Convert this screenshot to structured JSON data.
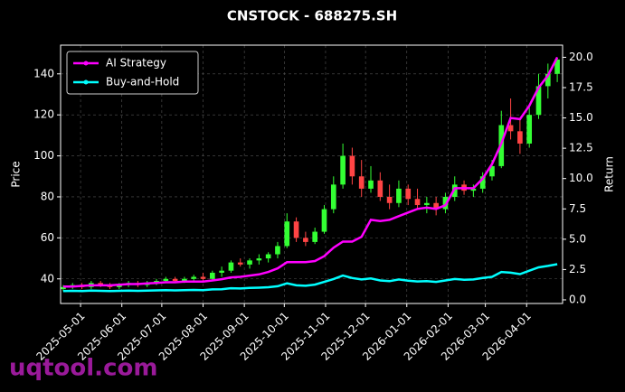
{
  "chart_data": {
    "type": "candlestick",
    "title": "CNSTOCK - 688275.SH",
    "ylabel": "Price",
    "y2label": "Return",
    "x": [
      "2025-04-18",
      "2025-04-25",
      "2025-05-02",
      "2025-05-09",
      "2025-05-16",
      "2025-05-23",
      "2025-05-30",
      "2025-06-06",
      "2025-06-13",
      "2025-06-20",
      "2025-06-27",
      "2025-07-04",
      "2025-07-11",
      "2025-07-18",
      "2025-07-25",
      "2025-08-01",
      "2025-08-08",
      "2025-08-15",
      "2025-08-22",
      "2025-08-29",
      "2025-09-05",
      "2025-09-12",
      "2025-09-19",
      "2025-09-26",
      "2025-10-03",
      "2025-10-10",
      "2025-10-17",
      "2025-10-24",
      "2025-10-31",
      "2025-11-07",
      "2025-11-14",
      "2025-11-21",
      "2025-11-28",
      "2025-12-05",
      "2025-12-12",
      "2025-12-19",
      "2025-12-26",
      "2026-01-02",
      "2026-01-09",
      "2026-01-16",
      "2026-01-23",
      "2026-01-30",
      "2026-02-06",
      "2026-02-13",
      "2026-02-20",
      "2026-02-27",
      "2026-03-06",
      "2026-03-13",
      "2026-03-20",
      "2026-03-27",
      "2026-04-03",
      "2026-04-10",
      "2026-04-17",
      "2026-04-24"
    ],
    "open": [
      35,
      36,
      37,
      36,
      38,
      37,
      36,
      37,
      38,
      37,
      38,
      39,
      40,
      39,
      40,
      41,
      40,
      43,
      44,
      48,
      47,
      49,
      50,
      52,
      56,
      68,
      60,
      58,
      63,
      74,
      86,
      100,
      90,
      84,
      88,
      80,
      77,
      84,
      79,
      76,
      77,
      74,
      80,
      86,
      83,
      84,
      90,
      95,
      115,
      112,
      106,
      120,
      134,
      140
    ],
    "high": [
      37,
      38,
      38,
      39,
      39,
      38,
      38,
      39,
      39,
      39,
      40,
      41,
      41,
      41,
      42,
      43,
      44,
      46,
      49,
      50,
      50,
      52,
      53,
      58,
      72,
      70,
      63,
      65,
      76,
      90,
      106,
      104,
      98,
      95,
      92,
      86,
      88,
      86,
      84,
      80,
      80,
      82,
      90,
      88,
      86,
      92,
      98,
      122,
      128,
      118,
      125,
      140,
      145,
      148
    ],
    "low": [
      34,
      35,
      35,
      35,
      36,
      35,
      35,
      36,
      36,
      36,
      37,
      38,
      38,
      38,
      39,
      39,
      39,
      41,
      43,
      46,
      45,
      47,
      48,
      50,
      55,
      58,
      56,
      57,
      62,
      72,
      84,
      86,
      80,
      82,
      78,
      74,
      75,
      76,
      74,
      72,
      71,
      72,
      78,
      81,
      80,
      82,
      88,
      94,
      108,
      101,
      104,
      118,
      128,
      136
    ],
    "close": [
      36,
      37,
      36,
      38,
      37,
      36,
      37,
      38,
      37,
      38,
      39,
      40,
      39,
      40,
      41,
      40,
      43,
      44,
      48,
      47,
      49,
      50,
      52,
      56,
      68,
      60,
      58,
      63,
      74,
      86,
      100,
      90,
      84,
      88,
      80,
      77,
      84,
      79,
      76,
      77,
      74,
      80,
      86,
      83,
      84,
      90,
      95,
      115,
      112,
      106,
      120,
      134,
      140,
      147
    ],
    "up_color": "#33ff33",
    "down_color": "#ff4444",
    "series": [
      {
        "name": "AI Strategy",
        "color": "#ff00ff",
        "axis": "y2",
        "values": [
          1.1,
          1.1,
          1.15,
          1.2,
          1.2,
          1.2,
          1.25,
          1.3,
          1.3,
          1.35,
          1.4,
          1.45,
          1.45,
          1.5,
          1.5,
          1.5,
          1.6,
          1.7,
          1.85,
          1.9,
          2.0,
          2.1,
          2.3,
          2.6,
          3.1,
          3.1,
          3.1,
          3.2,
          3.6,
          4.3,
          4.8,
          4.8,
          5.2,
          6.6,
          6.5,
          6.6,
          6.9,
          7.2,
          7.5,
          7.6,
          7.5,
          7.8,
          9.2,
          9.2,
          9.2,
          10.0,
          11.2,
          12.9,
          15.0,
          14.9,
          16.0,
          17.5,
          18.5,
          20.0
        ]
      },
      {
        "name": "Buy-and-Hold",
        "color": "#00ffff",
        "axis": "y2",
        "values": [
          0.72,
          0.74,
          0.72,
          0.76,
          0.74,
          0.72,
          0.74,
          0.76,
          0.74,
          0.76,
          0.78,
          0.8,
          0.78,
          0.8,
          0.82,
          0.8,
          0.86,
          0.88,
          0.96,
          0.94,
          0.98,
          1.0,
          1.04,
          1.12,
          1.36,
          1.2,
          1.16,
          1.26,
          1.48,
          1.72,
          2.0,
          1.8,
          1.68,
          1.76,
          1.6,
          1.54,
          1.68,
          1.58,
          1.52,
          1.54,
          1.48,
          1.6,
          1.72,
          1.66,
          1.68,
          1.8,
          1.9,
          2.3,
          2.24,
          2.12,
          2.4,
          2.68,
          2.8,
          2.94
        ]
      }
    ],
    "xlim": [
      "2025-04-16",
      "2026-04-28"
    ],
    "xticks": [
      "2025-05-01",
      "2025-06-01",
      "2025-07-01",
      "2025-08-01",
      "2025-09-01",
      "2025-10-01",
      "2025-11-01",
      "2025-12-01",
      "2026-01-01",
      "2026-02-01",
      "2026-03-01",
      "2026-04-01"
    ],
    "ylim": [
      28,
      154
    ],
    "yticks": [
      40,
      60,
      80,
      100,
      120,
      140
    ],
    "y2lim": [
      -0.3,
      21.0
    ],
    "y2ticks": [
      {
        "value": 0,
        "label": "0.0"
      },
      2.5,
      {
        "value": 5,
        "label": "5.0"
      },
      7.5,
      {
        "value": 10,
        "label": "10.0"
      },
      12.5,
      {
        "value": 15,
        "label": "15.0"
      },
      17.5,
      {
        "value": 20,
        "label": "20.0"
      }
    ],
    "grid": true,
    "legend": "upper left"
  },
  "watermark": "uqtool.com"
}
